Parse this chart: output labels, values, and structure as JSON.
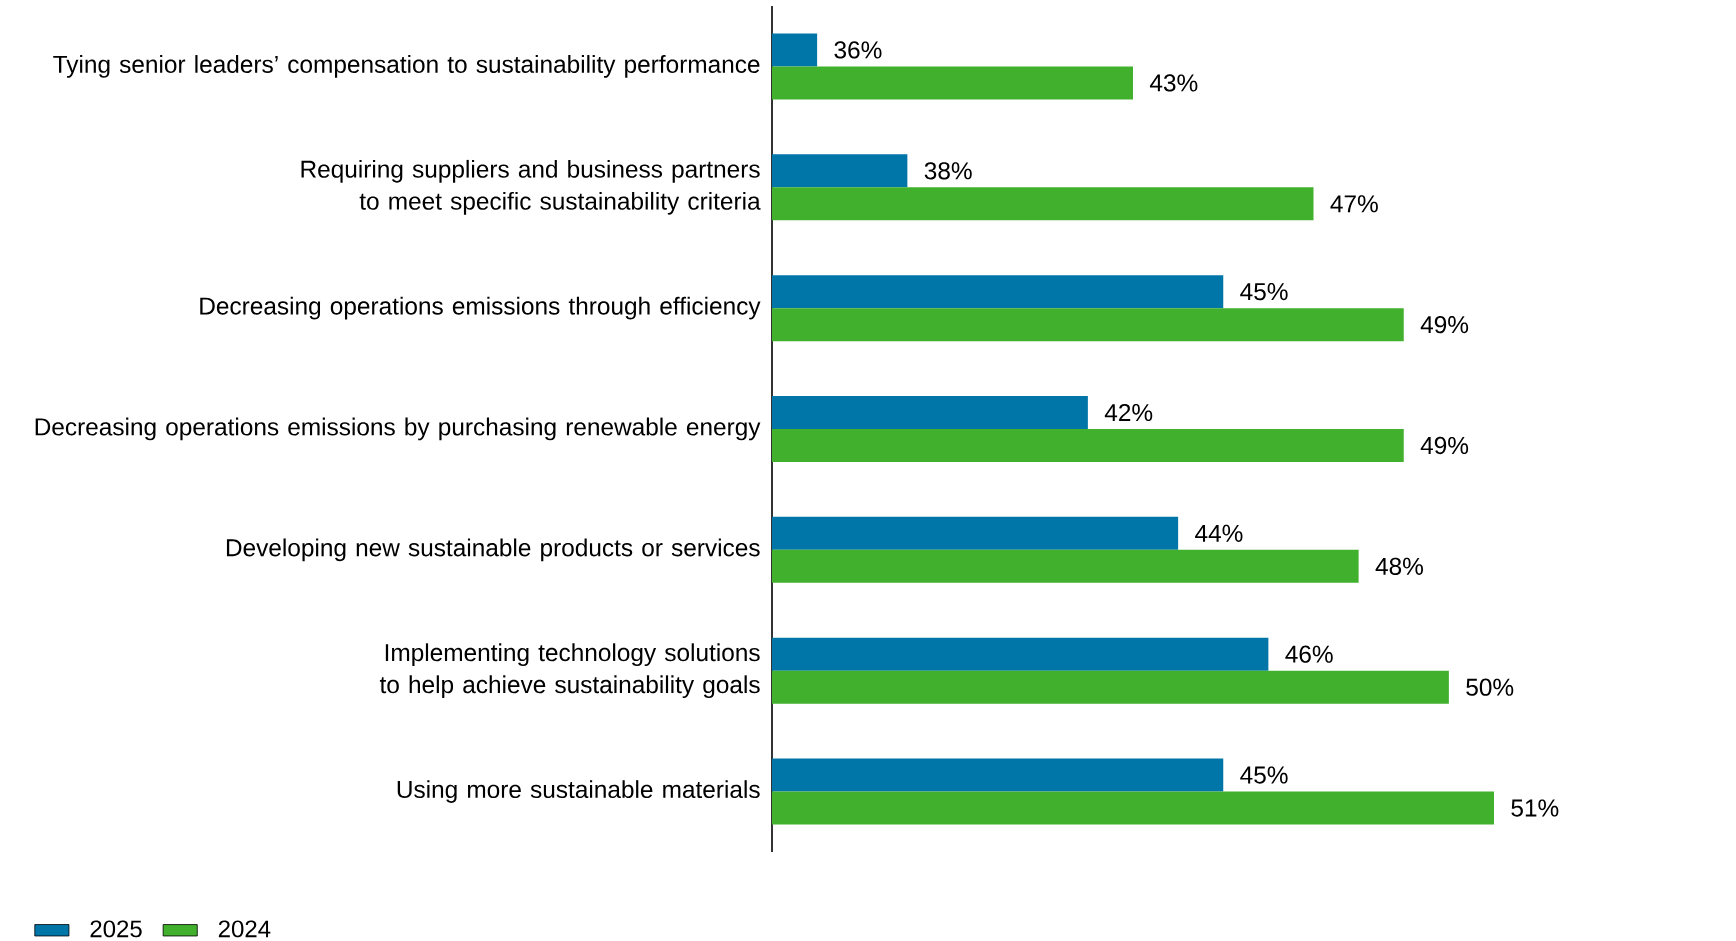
{
  "chart_data": {
    "type": "bar",
    "orientation": "horizontal",
    "categories": [
      "Tying senior leaders’ compensation to sustainability performance",
      "Requiring suppliers and business partners to meet specific sustainability criteria",
      "Decreasing operations emissions through efficiency",
      "Decreasing operations emissions by purchasing renewable energy",
      "Developing new sustainable products or services",
      "Implementing technology solutions to help achieve sustainability goals",
      "Using more sustainable materials"
    ],
    "series": [
      {
        "name": "2025",
        "color": "#0076a8",
        "values": [
          36,
          38,
          45,
          42,
          44,
          46,
          45
        ],
        "value_labels": [
          "36%",
          "38%",
          "45%",
          "42%",
          "44%",
          "46%",
          "45%"
        ]
      },
      {
        "name": "2024",
        "color": "#41b02c",
        "values": [
          43,
          47,
          49,
          49,
          48,
          50,
          51
        ],
        "value_labels": [
          "43%",
          "47%",
          "49%",
          "49%",
          "48%",
          "50%",
          "51%"
        ]
      }
    ],
    "xlim": [
      35,
      51
    ],
    "legend": "bottom left"
  }
}
